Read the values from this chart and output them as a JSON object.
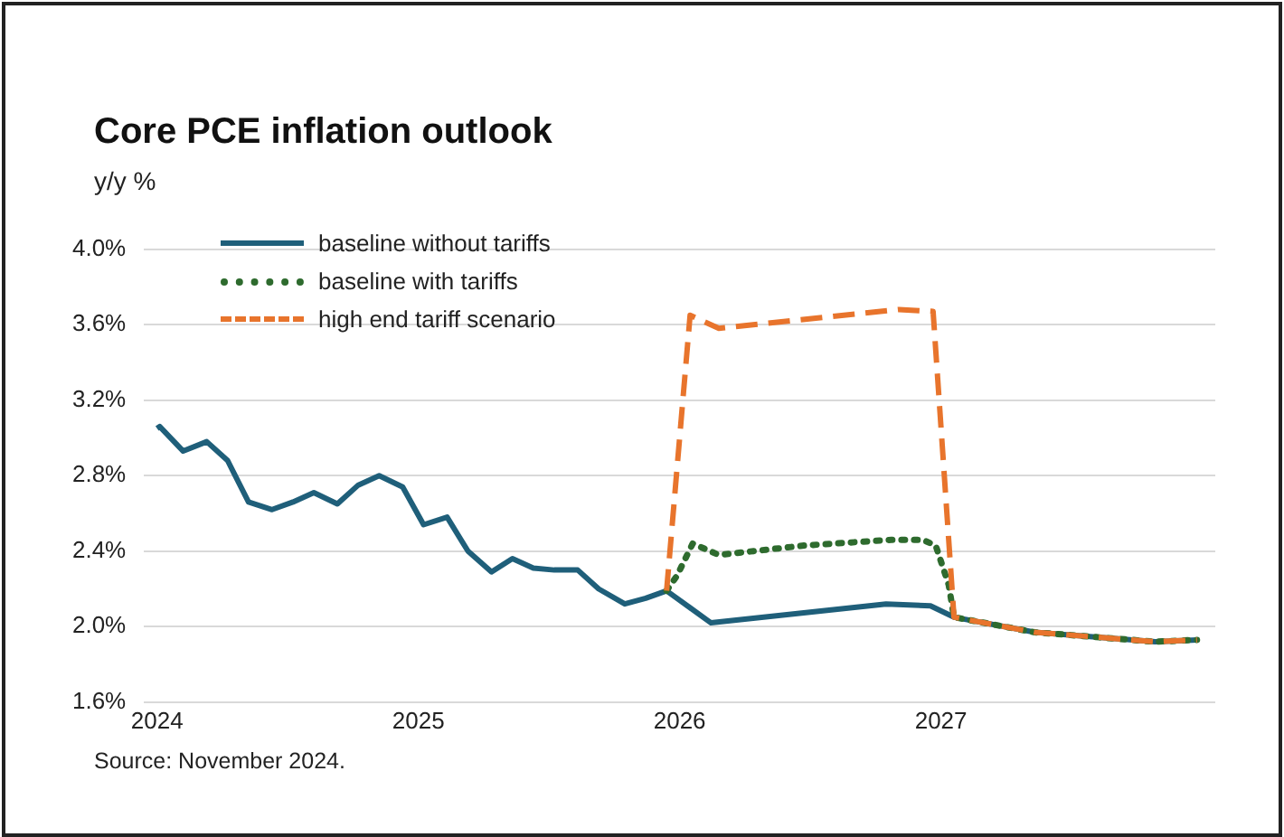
{
  "chart_data": {
    "type": "line",
    "title": "Core PCE inflation outlook",
    "ylabel": "y/y %",
    "xlim": [
      2023.95,
      2028.05
    ],
    "xticks": [
      2024,
      2025,
      2026,
      2027
    ],
    "ylim": [
      1.6,
      4.0
    ],
    "yticks": [
      {
        "value": 1.6,
        "label": "1.6%"
      },
      {
        "value": 2.0,
        "label": "2.0%"
      },
      {
        "value": 2.4,
        "label": "2.4%"
      },
      {
        "value": 2.8,
        "label": "2.8%"
      },
      {
        "value": 3.2,
        "label": "3.2%"
      },
      {
        "value": 3.6,
        "label": "3.6%"
      },
      {
        "value": 4.0,
        "label": "4.0%"
      }
    ],
    "grid": "y",
    "legend": "top left",
    "marker": "none",
    "series": [
      {
        "name": "baseline without tariffs",
        "color": "#1f5f7a",
        "line_style": "solid",
        "x": [
          2024.0,
          2024.01,
          2024.1,
          2024.19,
          2024.27,
          2024.35,
          2024.44,
          2024.52,
          2024.6,
          2024.69,
          2024.77,
          2024.85,
          2024.94,
          2025.02,
          2025.11,
          2025.19,
          2025.28,
          2025.36,
          2025.44,
          2025.52,
          2025.61,
          2025.69,
          2025.79,
          2025.87,
          2025.95,
          2026.12,
          2026.79,
          2026.96,
          2027.05,
          2027.36,
          2027.82,
          2027.98
        ],
        "values": [
          3.05,
          3.06,
          2.93,
          2.98,
          2.88,
          2.66,
          2.62,
          2.66,
          2.71,
          2.65,
          2.75,
          2.8,
          2.74,
          2.54,
          2.58,
          2.4,
          2.29,
          2.36,
          2.31,
          2.3,
          2.3,
          2.2,
          2.12,
          2.15,
          2.19,
          2.02,
          2.12,
          2.11,
          2.05,
          1.97,
          1.92,
          1.93
        ]
      },
      {
        "name": "baseline with tariffs",
        "color": "#2e6b2e",
        "line_style": "dotted",
        "x": [
          2025.95,
          2025.99,
          2026.05,
          2026.15,
          2026.48,
          2026.81,
          2026.93,
          2026.98,
          2027.03,
          2027.05,
          2027.36,
          2027.82,
          2027.98
        ],
        "values": [
          2.19,
          2.27,
          2.44,
          2.38,
          2.43,
          2.46,
          2.46,
          2.43,
          2.22,
          2.05,
          1.97,
          1.92,
          1.93
        ]
      },
      {
        "name": "high end tariff scenario",
        "color": "#e8742c",
        "line_style": "dashed",
        "x": [
          2025.95,
          2026.04,
          2026.15,
          2026.84,
          2026.97,
          2027.05,
          2027.36,
          2027.82,
          2027.98
        ],
        "values": [
          2.19,
          3.65,
          3.58,
          3.68,
          3.67,
          2.05,
          1.97,
          1.92,
          1.93
        ]
      }
    ],
    "annotations": [
      "Source: November 2024."
    ]
  }
}
